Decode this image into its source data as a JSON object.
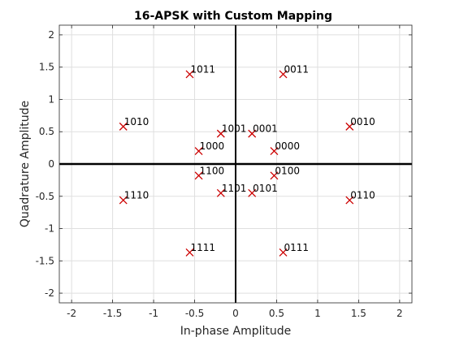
{
  "chart_data": {
    "type": "scatter",
    "title": "16-APSK with Custom Mapping",
    "xlabel": "In-phase Amplitude",
    "ylabel": "Quadrature Amplitude",
    "xlim": [
      -2.15,
      2.15
    ],
    "ylim": [
      -2.15,
      2.15
    ],
    "xticks": [
      -2,
      -1.5,
      -1,
      -0.5,
      0,
      0.5,
      1,
      1.5,
      2
    ],
    "yticks": [
      -2,
      -1.5,
      -1,
      -0.5,
      0,
      0.5,
      1,
      1.5,
      2
    ],
    "xtick_labels": [
      "-2",
      "-1.5",
      "-1",
      "-0.5",
      "0",
      "0.5",
      "1",
      "1.5",
      "2"
    ],
    "ytick_labels": [
      "-2",
      "-1.5",
      "-1",
      "-0.5",
      "0",
      "0.5",
      "1",
      "1.5",
      "2"
    ],
    "grid": true,
    "marker_color": "#cc0000",
    "points": [
      {
        "x": 0.47,
        "y": 0.2,
        "label": "0000"
      },
      {
        "x": 0.2,
        "y": 0.47,
        "label": "0001"
      },
      {
        "x": 1.39,
        "y": 0.58,
        "label": "0010"
      },
      {
        "x": 0.58,
        "y": 1.39,
        "label": "0011"
      },
      {
        "x": 0.47,
        "y": -0.18,
        "label": "0100"
      },
      {
        "x": 0.2,
        "y": -0.45,
        "label": "0101"
      },
      {
        "x": 1.39,
        "y": -0.56,
        "label": "0110"
      },
      {
        "x": 0.58,
        "y": -1.37,
        "label": "0111"
      },
      {
        "x": -0.45,
        "y": 0.2,
        "label": "1000"
      },
      {
        "x": -0.18,
        "y": 0.47,
        "label": "1001"
      },
      {
        "x": -1.37,
        "y": 0.58,
        "label": "1010"
      },
      {
        "x": -0.56,
        "y": 1.39,
        "label": "1011"
      },
      {
        "x": -0.45,
        "y": -0.18,
        "label": "1100"
      },
      {
        "x": -0.18,
        "y": -0.45,
        "label": "1101"
      },
      {
        "x": -1.37,
        "y": -0.56,
        "label": "1110"
      },
      {
        "x": -0.56,
        "y": -1.37,
        "label": "1111"
      }
    ]
  }
}
